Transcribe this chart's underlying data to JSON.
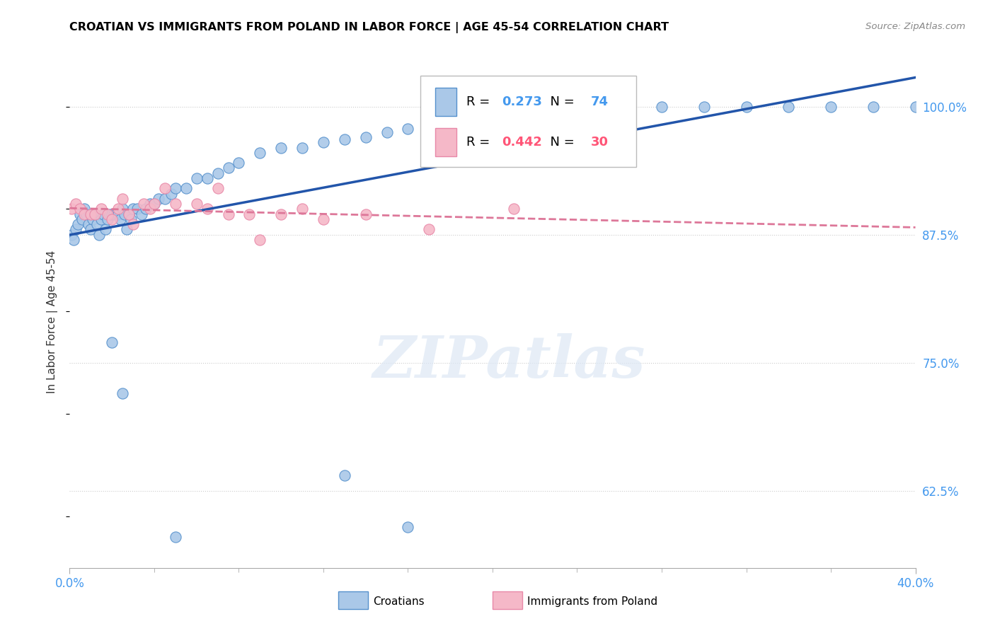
{
  "title": "CROATIAN VS IMMIGRANTS FROM POLAND IN LABOR FORCE | AGE 45-54 CORRELATION CHART",
  "source": "Source: ZipAtlas.com",
  "ylabel_text": "In Labor Force | Age 45-54",
  "xmin": 0.0,
  "xmax": 0.4,
  "ymin": 0.55,
  "ymax": 1.03,
  "xtick_labels": [
    "0.0%",
    "40.0%"
  ],
  "ytick_labels": [
    "100.0%",
    "87.5%",
    "75.0%",
    "62.5%"
  ],
  "ytick_values": [
    1.0,
    0.875,
    0.75,
    0.625
  ],
  "blue_r": 0.273,
  "blue_n": 74,
  "pink_r": 0.442,
  "pink_n": 30,
  "blue_color": "#aac8e8",
  "pink_color": "#f5b8c8",
  "blue_edge_color": "#5590cc",
  "pink_edge_color": "#e888a8",
  "blue_line_color": "#2255aa",
  "pink_line_color": "#dd7799",
  "tick_color": "#4499ee",
  "blue_points_x": [
    0.001,
    0.002,
    0.003,
    0.004,
    0.005,
    0.006,
    0.007,
    0.008,
    0.009,
    0.01,
    0.011,
    0.012,
    0.013,
    0.014,
    0.015,
    0.016,
    0.017,
    0.018,
    0.019,
    0.02,
    0.021,
    0.022,
    0.023,
    0.024,
    0.025,
    0.026,
    0.027,
    0.028,
    0.029,
    0.03,
    0.032,
    0.034,
    0.036,
    0.038,
    0.04,
    0.042,
    0.045,
    0.048,
    0.05,
    0.055,
    0.06,
    0.065,
    0.07,
    0.075,
    0.08,
    0.09,
    0.1,
    0.11,
    0.12,
    0.13,
    0.14,
    0.15,
    0.16,
    0.17,
    0.18,
    0.19,
    0.2,
    0.21,
    0.22,
    0.23,
    0.24,
    0.26,
    0.28,
    0.3,
    0.32,
    0.34,
    0.36,
    0.38,
    0.4,
    0.02,
    0.025,
    0.16,
    0.05,
    0.13
  ],
  "blue_points_y": [
    0.875,
    0.87,
    0.88,
    0.885,
    0.895,
    0.89,
    0.9,
    0.895,
    0.885,
    0.88,
    0.89,
    0.895,
    0.885,
    0.875,
    0.89,
    0.895,
    0.88,
    0.89,
    0.895,
    0.895,
    0.895,
    0.895,
    0.895,
    0.89,
    0.9,
    0.895,
    0.88,
    0.895,
    0.89,
    0.9,
    0.9,
    0.895,
    0.9,
    0.905,
    0.905,
    0.91,
    0.91,
    0.915,
    0.92,
    0.92,
    0.93,
    0.93,
    0.935,
    0.94,
    0.945,
    0.955,
    0.96,
    0.96,
    0.965,
    0.968,
    0.97,
    0.975,
    0.978,
    0.98,
    0.982,
    0.985,
    0.988,
    0.99,
    0.993,
    0.995,
    0.998,
    1.0,
    1.0,
    1.0,
    1.0,
    1.0,
    1.0,
    1.0,
    1.0,
    0.77,
    0.72,
    0.59,
    0.58,
    0.64
  ],
  "pink_points_x": [
    0.001,
    0.003,
    0.005,
    0.007,
    0.01,
    0.012,
    0.015,
    0.018,
    0.02,
    0.023,
    0.025,
    0.028,
    0.03,
    0.035,
    0.038,
    0.04,
    0.045,
    0.05,
    0.06,
    0.065,
    0.07,
    0.075,
    0.085,
    0.09,
    0.1,
    0.11,
    0.12,
    0.14,
    0.17,
    0.21
  ],
  "pink_points_y": [
    0.9,
    0.905,
    0.9,
    0.895,
    0.895,
    0.895,
    0.9,
    0.895,
    0.89,
    0.9,
    0.91,
    0.895,
    0.885,
    0.905,
    0.9,
    0.905,
    0.92,
    0.905,
    0.905,
    0.9,
    0.92,
    0.895,
    0.895,
    0.87,
    0.895,
    0.9,
    0.89,
    0.895,
    0.88,
    0.9
  ],
  "watermark_text": "ZIPatlas"
}
